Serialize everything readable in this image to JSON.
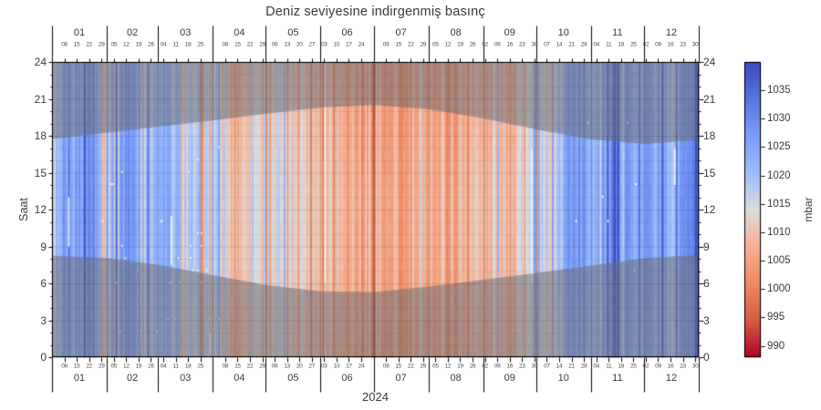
{
  "chart_data": {
    "type": "heatmap",
    "title": "Deniz seviyesine indirgenmiş basınç",
    "x_title": "2024",
    "y_label": "Saat",
    "y_ticks": [
      "0",
      "3",
      "6",
      "9",
      "12",
      "15",
      "18",
      "21",
      "24"
    ],
    "y_range": [
      0,
      24
    ],
    "x_unit": "day of year 2024, one column per day; weekly (Monday) ticks",
    "months": [
      {
        "label": "01",
        "num_days": 31,
        "monday_labels": [
          "08",
          "15",
          "22",
          "29"
        ]
      },
      {
        "label": "02",
        "num_days": 29,
        "monday_labels": [
          "05",
          "12",
          "19",
          "26"
        ]
      },
      {
        "label": "03",
        "num_days": 31,
        "monday_labels": [
          "04",
          "11",
          "18",
          "25"
        ]
      },
      {
        "label": "04",
        "num_days": 30,
        "monday_labels": [
          "08",
          "15",
          "22",
          "29"
        ]
      },
      {
        "label": "05",
        "num_days": 31,
        "monday_labels": [
          "06",
          "13",
          "20",
          "27"
        ]
      },
      {
        "label": "06",
        "num_days": 30,
        "monday_labels": [
          "03",
          "10",
          "17",
          "24"
        ]
      },
      {
        "label": "07",
        "num_days": 31,
        "monday_labels": [
          "08",
          "15",
          "22",
          "29"
        ]
      },
      {
        "label": "08",
        "num_days": 31,
        "monday_labels": [
          "05",
          "12",
          "19",
          "26"
        ]
      },
      {
        "label": "09",
        "num_days": 30,
        "monday_labels": [
          "02",
          "09",
          "16",
          "23",
          "30"
        ]
      },
      {
        "label": "10",
        "num_days": 31,
        "monday_labels": [
          "07",
          "14",
          "21",
          "28"
        ]
      },
      {
        "label": "11",
        "num_days": 30,
        "monday_labels": [
          "04",
          "11",
          "18",
          "25"
        ]
      },
      {
        "label": "12",
        "num_days": 31,
        "monday_labels": [
          "02",
          "09",
          "16",
          "23",
          "30"
        ]
      }
    ],
    "colorbar": {
      "label": "mbar",
      "ticks": [
        990,
        995,
        1000,
        1005,
        1010,
        1015,
        1020,
        1025,
        1030,
        1035
      ],
      "range": [
        988,
        1040
      ],
      "colormap": "coolwarm reversed (dark blue = high pressure, dark red = low pressure)",
      "color_high": "#3b4cc0",
      "color_mid": "#dddddd",
      "color_low": "#b40426"
    },
    "day_night_shading": {
      "description": "semi-transparent grey marks night hours; boundary follows sunrise/sunset through the year",
      "month_start_sunrise_hour": [
        8.25,
        8.05,
        7.5,
        6.65,
        5.85,
        5.35,
        5.3,
        5.75,
        6.3,
        6.85,
        7.45,
        8.05,
        8.3
      ],
      "month_start_sunset_hour": [
        17.75,
        18.25,
        18.75,
        19.25,
        19.8,
        20.3,
        20.5,
        20.15,
        19.4,
        18.5,
        17.7,
        17.35,
        17.65
      ]
    },
    "weekly_pressure_mbar": [
      1015,
      1020,
      1026,
      1030,
      1020,
      1024,
      1029,
      1024,
      1021,
      1023,
      1019,
      1017,
      1013,
      1017,
      1012,
      1007,
      1015,
      1013,
      1015,
      1011,
      1013,
      1010,
      1011,
      1009,
      1007,
      1005,
      1007,
      1005,
      1003,
      1005,
      1007,
      1007,
      1005,
      1007,
      1009,
      1007,
      1011,
      1009,
      1013,
      1015,
      1013,
      1019,
      1028,
      1026,
      1023,
      1028,
      1031,
      1022,
      1024,
      1029,
      1021,
      1026,
      1032
    ],
    "missing_data_segments": [
      {
        "doy": 9,
        "hours": [
          9,
          13
        ]
      },
      {
        "doy": 67,
        "hours": [
          7.5,
          11.5
        ]
      },
      {
        "doy": 89,
        "hours": [
          0,
          2
        ]
      },
      {
        "doy": 154,
        "hours": [
          6,
          24
        ]
      },
      {
        "doy": 271,
        "hours": [
          6,
          17
        ]
      },
      {
        "doy": 352,
        "hours": [
          14,
          17
        ]
      }
    ]
  }
}
